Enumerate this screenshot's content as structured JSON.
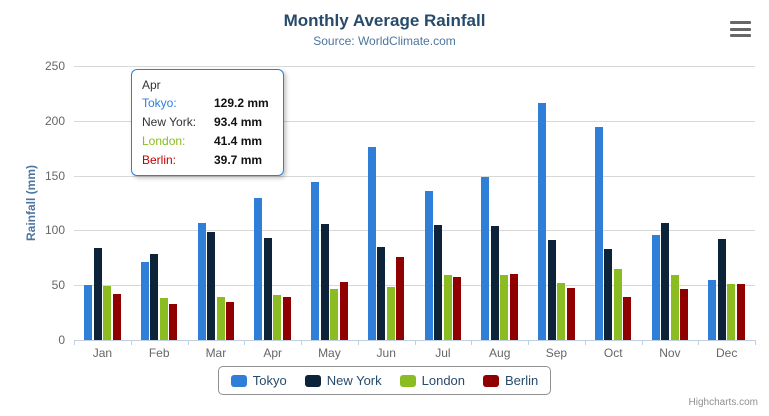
{
  "chart": {
    "title": "Monthly Average Rainfall",
    "subtitle": "Source: WorldClimate.com",
    "ylabel": "Rainfall (mm)",
    "credits": "Highcharts.com"
  },
  "chart_data": {
    "type": "bar",
    "title": "Monthly Average Rainfall",
    "subtitle": "Source: WorldClimate.com",
    "xlabel": "",
    "ylabel": "Rainfall (mm)",
    "ylim": [
      0,
      250
    ],
    "yticks": [
      0,
      50,
      100,
      150,
      200,
      250
    ],
    "grid": true,
    "legend_position": "bottom",
    "categories": [
      "Jan",
      "Feb",
      "Mar",
      "Apr",
      "May",
      "Jun",
      "Jul",
      "Aug",
      "Sep",
      "Oct",
      "Nov",
      "Dec"
    ],
    "series": [
      {
        "name": "Tokyo",
        "color": "#2f7ed8",
        "values": [
          49.9,
          71.5,
          106.4,
          129.2,
          144.0,
          176.0,
          135.6,
          148.5,
          216.4,
          194.1,
          95.6,
          54.4
        ]
      },
      {
        "name": "New York",
        "color": "#0d233a",
        "values": [
          83.6,
          78.8,
          98.5,
          93.4,
          106.0,
          84.5,
          105.0,
          104.3,
          91.2,
          83.5,
          106.6,
          92.3
        ]
      },
      {
        "name": "London",
        "color": "#8bbc21",
        "values": [
          48.9,
          38.8,
          39.3,
          41.4,
          47.0,
          48.3,
          59.0,
          59.6,
          52.4,
          65.2,
          59.3,
          51.2
        ]
      },
      {
        "name": "Berlin",
        "color": "#910000",
        "values": [
          42.4,
          33.2,
          34.5,
          39.7,
          52.6,
          75.5,
          57.4,
          60.4,
          47.6,
          39.1,
          46.8,
          51.1
        ]
      }
    ]
  },
  "tooltip": {
    "header": "Apr",
    "rows": [
      {
        "label": "Tokyo:",
        "value": "129.2 mm",
        "color": "#2f7ed8"
      },
      {
        "label": "New York:",
        "value": "93.4 mm",
        "color": "#333333"
      },
      {
        "label": "London:",
        "value": "41.4 mm",
        "color": "#8bbc21"
      },
      {
        "label": "Berlin:",
        "value": "39.7 mm",
        "color": "#c00000"
      }
    ]
  }
}
